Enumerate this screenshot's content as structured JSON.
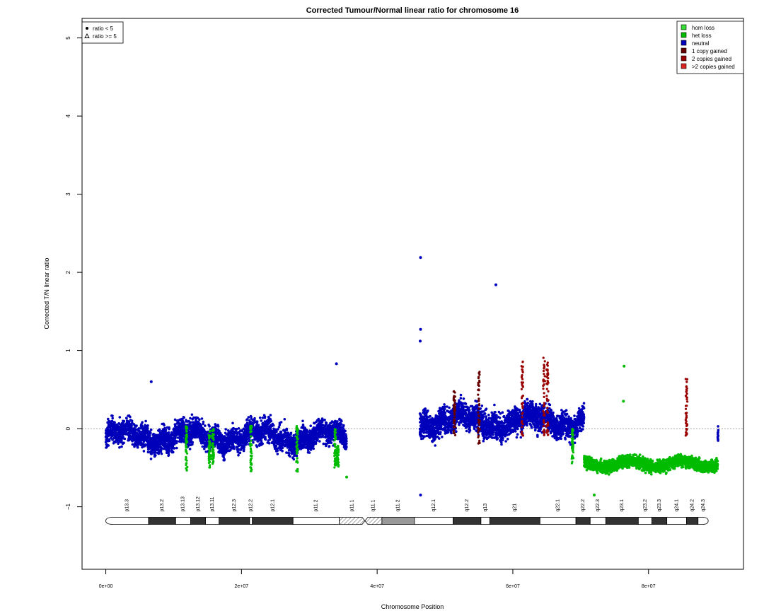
{
  "chart_data": {
    "type": "scatter",
    "title": "Corrected Tumour/Normal linear ratio for chromosome  16",
    "xlabel": "Chromosome Position",
    "ylabel": "Corrected T/N linear ratio",
    "xlim": [
      -3500000,
      94000000
    ],
    "ylim": [
      -1.8,
      5.25
    ],
    "x_ticks": [
      {
        "value": 0,
        "label": "0e+00"
      },
      {
        "value": 20000000,
        "label": "2e+07"
      },
      {
        "value": 40000000,
        "label": "4e+07"
      },
      {
        "value": 60000000,
        "label": "6e+07"
      },
      {
        "value": 80000000,
        "label": "8e+07"
      }
    ],
    "y_ticks": [
      {
        "value": -1,
        "label": "−1"
      },
      {
        "value": 0,
        "label": "0"
      },
      {
        "value": 1,
        "label": "1"
      },
      {
        "value": 2,
        "label": "2"
      },
      {
        "value": 3,
        "label": "3"
      },
      {
        "value": 4,
        "label": "4"
      },
      {
        "value": 5,
        "label": "5"
      }
    ],
    "reference_line": 0,
    "legend_symbols": {
      "placement": "top-left",
      "entries": [
        {
          "label": "ratio < 5",
          "marker": "dot"
        },
        {
          "label": "ratio >= 5",
          "marker": "triangle"
        }
      ]
    },
    "legend_states": {
      "placement": "top-right",
      "entries": [
        {
          "label": "hom loss",
          "color": "#33dd33"
        },
        {
          "label": "het loss",
          "color": "#00bb00"
        },
        {
          "label": "neutral",
          "color": "#0000bb"
        },
        {
          "label": "1 copy gained",
          "color": "#660000"
        },
        {
          "label": "2 copies gained",
          "color": "#990000"
        },
        {
          "label": ">2 copies gained",
          "color": "#dd2222"
        }
      ]
    },
    "segments": [
      {
        "state": "neutral",
        "x": [
          0,
          35500000
        ],
        "y": -0.1,
        "spread": 0.35,
        "color": "#0000bb"
      },
      {
        "state": "neutral",
        "x": [
          46300000,
          70500000
        ],
        "y": 0.1,
        "spread": 0.4,
        "color": "#0000bb"
      },
      {
        "state": "het loss",
        "x": [
          70500000,
          90200000
        ],
        "y": -0.45,
        "spread": 0.18,
        "color": "#00bb00"
      },
      {
        "state": "neutral",
        "x": [
          90200000,
          90300000
        ],
        "y": -0.1,
        "spread": 0.25,
        "color": "#0000bb"
      }
    ],
    "outliers": [
      {
        "x": 46400000,
        "y": 2.19,
        "state": "neutral"
      },
      {
        "x": 57500000,
        "y": 1.84,
        "state": "neutral"
      },
      {
        "x": 46400000,
        "y": 1.27,
        "state": "neutral"
      },
      {
        "x": 46350000,
        "y": 1.12,
        "state": "neutral"
      },
      {
        "x": 46400000,
        "y": -0.85,
        "state": "neutral"
      },
      {
        "x": 34000000,
        "y": 0.83,
        "state": "neutral"
      },
      {
        "x": 6700000,
        "y": 0.6,
        "state": "neutral"
      },
      {
        "x": 76400000,
        "y": 0.8,
        "state": "het loss"
      },
      {
        "x": 76300000,
        "y": 0.35,
        "state": "het loss"
      },
      {
        "x": 72000000,
        "y": -0.85,
        "state": "het loss"
      },
      {
        "x": 35500000,
        "y": -0.62,
        "state": "het loss"
      }
    ],
    "clusters": [
      {
        "state": "het loss",
        "x": 11900000,
        "y": [
          -0.55,
          0.05
        ]
      },
      {
        "state": "het loss",
        "x": 15300000,
        "y": [
          -0.5,
          0.0
        ]
      },
      {
        "state": "het loss",
        "x": 15800000,
        "y": [
          -0.45,
          0.0
        ]
      },
      {
        "state": "het loss",
        "x": 21400000,
        "y": [
          -0.55,
          0.05
        ]
      },
      {
        "state": "het loss",
        "x": 28200000,
        "y": [
          -0.55,
          0.05
        ]
      },
      {
        "state": "het loss",
        "x": 33800000,
        "y": [
          -0.5,
          0.0
        ]
      },
      {
        "state": "het loss",
        "x": 34200000,
        "y": [
          -0.5,
          -0.2
        ]
      },
      {
        "state": "1 copy gained",
        "x": 51400000,
        "y": [
          -0.1,
          0.5
        ]
      },
      {
        "state": "1 copy gained",
        "x": 55000000,
        "y": [
          -0.2,
          0.75
        ]
      },
      {
        "state": "2 copies gained",
        "x": 61400000,
        "y": [
          -0.1,
          0.92
        ]
      },
      {
        "state": "2 copies gained",
        "x": 64600000,
        "y": [
          -0.1,
          0.95
        ]
      },
      {
        "state": "2 copies gained",
        "x": 65100000,
        "y": [
          -0.1,
          0.85
        ]
      },
      {
        "state": "2 copies gained",
        "x": 85600000,
        "y": [
          -0.1,
          0.68
        ]
      },
      {
        "state": "het loss",
        "x": 68800000,
        "y": [
          -0.45,
          0.0
        ]
      }
    ],
    "ideogram": {
      "y": -1.18,
      "bands": [
        {
          "name": "p13.3",
          "start": 0,
          "end": 6300000,
          "fill": "white"
        },
        {
          "name": "p13.2",
          "start": 6300000,
          "end": 10300000,
          "fill": "#333333"
        },
        {
          "name": "p13.13",
          "start": 10300000,
          "end": 12500000,
          "fill": "white"
        },
        {
          "name": "p13.12",
          "start": 12500000,
          "end": 14700000,
          "fill": "#333333"
        },
        {
          "name": "p13.11",
          "start": 14700000,
          "end": 16700000,
          "fill": "white"
        },
        {
          "name": "p12.3",
          "start": 16700000,
          "end": 21200000,
          "fill": "#333333"
        },
        {
          "name": "p12.2",
          "start": 21200000,
          "end": 21600000,
          "fill": "white"
        },
        {
          "name": "p12.1",
          "start": 21600000,
          "end": 27600000,
          "fill": "#333333"
        },
        {
          "name": "p11.2",
          "start": 27600000,
          "end": 34400000,
          "fill": "white"
        },
        {
          "name": "p11.1",
          "start": 34400000,
          "end": 38200000,
          "fill": "hatch"
        },
        {
          "name": "q11.1",
          "start": 38200000,
          "end": 40700000,
          "fill": "hatch"
        },
        {
          "name": "q11.2",
          "start": 40700000,
          "end": 45500000,
          "fill": "#999999"
        },
        {
          "name": "q12.1",
          "start": 45500000,
          "end": 51200000,
          "fill": "white"
        },
        {
          "name": "q12.2",
          "start": 51200000,
          "end": 55300000,
          "fill": "#333333"
        },
        {
          "name": "q13",
          "start": 55300000,
          "end": 56600000,
          "fill": "white"
        },
        {
          "name": "q21",
          "start": 56600000,
          "end": 64000000,
          "fill": "#333333"
        },
        {
          "name": "q22.1",
          "start": 64000000,
          "end": 69300000,
          "fill": "white"
        },
        {
          "name": "q22.2",
          "start": 69300000,
          "end": 71400000,
          "fill": "#333333"
        },
        {
          "name": "q22.3",
          "start": 71400000,
          "end": 73700000,
          "fill": "white"
        },
        {
          "name": "q23.1",
          "start": 73700000,
          "end": 78500000,
          "fill": "#333333"
        },
        {
          "name": "q23.2",
          "start": 78500000,
          "end": 80500000,
          "fill": "white"
        },
        {
          "name": "q23.3",
          "start": 80500000,
          "end": 82700000,
          "fill": "#333333"
        },
        {
          "name": "q24.1",
          "start": 82700000,
          "end": 85600000,
          "fill": "white"
        },
        {
          "name": "q24.2",
          "start": 85600000,
          "end": 87300000,
          "fill": "#333333"
        },
        {
          "name": "q24.3",
          "start": 87300000,
          "end": 88800000,
          "fill": "white"
        }
      ]
    }
  }
}
